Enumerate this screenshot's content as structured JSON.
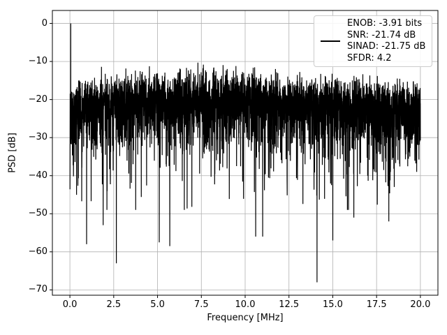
{
  "figure": {
    "background": "#ffffff",
    "xlabel": "Frequency [MHz]",
    "ylabel": "PSD [dB]"
  },
  "legend": {
    "lines": [
      "ENOB: -3.91 bits",
      "SNR: -21.74 dB",
      "SINAD: -21.75 dB",
      "SFDR: 4.2"
    ],
    "line_color": "#000000"
  },
  "chart_data": {
    "type": "line",
    "title": "",
    "xlabel": "Frequency [MHz]",
    "ylabel": "PSD [dB]",
    "xlim": [
      -1,
      21
    ],
    "ylim": [
      -71.4,
      3.4
    ],
    "grid": true,
    "grid_color": "#b0b0b0",
    "frame_color": "#000000",
    "x_ticks": [
      {
        "value": 0.0,
        "label": "0.0"
      },
      {
        "value": 2.5,
        "label": "2.5"
      },
      {
        "value": 5.0,
        "label": "5.0"
      },
      {
        "value": 7.5,
        "label": "7.5"
      },
      {
        "value": 10.0,
        "label": "10.0"
      },
      {
        "value": 12.5,
        "label": "12.5"
      },
      {
        "value": 15.0,
        "label": "15.0"
      },
      {
        "value": 17.5,
        "label": "17.5"
      },
      {
        "value": 20.0,
        "label": "20.0"
      }
    ],
    "y_ticks": [
      {
        "value": 0,
        "label": "0"
      },
      {
        "value": -10,
        "label": "−10"
      },
      {
        "value": -20,
        "label": "−20"
      },
      {
        "value": -30,
        "label": "−30"
      },
      {
        "value": -40,
        "label": "−40"
      },
      {
        "value": -50,
        "label": "−50"
      },
      {
        "value": -60,
        "label": "−60"
      },
      {
        "value": -70,
        "label": "−70"
      }
    ],
    "series": [
      {
        "name": "ENOB: -3.91 bits / SNR: -21.74 dB / SINAD: -21.75 dB / SFDR: 4.2",
        "color": "#000000",
        "line_width": 1.2,
        "kind": "psd-noise-spectrum"
      }
    ],
    "stats": {
      "enob_bits": -3.91,
      "snr_db": -21.74,
      "sinad_db": -21.75,
      "sfdr": 4.2
    },
    "signal_peak": {
      "freq_mhz": 0.05,
      "psd_db": 0.0
    },
    "noise_model": {
      "bins": 4096,
      "seed": 7,
      "freq_span_mhz": 20,
      "floor_db": -21.5,
      "hump_amp_db": 2.8,
      "hump_center_mhz": 8,
      "hump_width": 45,
      "lowfreq_dip_db": 3.5,
      "lowfreq_tau_mhz": 0.6,
      "random_min_clamp_db": -49,
      "max_clamp_db": -10.3,
      "top_envelope_db": -11,
      "typical_floor_band_db": [
        -40,
        -13
      ]
    },
    "notable_dips": [
      {
        "freq_mhz": 0.95,
        "psd_db": -58
      },
      {
        "freq_mhz": 1.9,
        "psd_db": -53
      },
      {
        "freq_mhz": 2.65,
        "psd_db": -63
      },
      {
        "freq_mhz": 5.1,
        "psd_db": -57.5
      },
      {
        "freq_mhz": 5.7,
        "psd_db": -58.5
      },
      {
        "freq_mhz": 10.6,
        "psd_db": -56
      },
      {
        "freq_mhz": 11.0,
        "psd_db": -56
      },
      {
        "freq_mhz": 14.1,
        "psd_db": -68
      },
      {
        "freq_mhz": 15.0,
        "psd_db": -57
      },
      {
        "freq_mhz": 16.2,
        "psd_db": -51
      },
      {
        "freq_mhz": 18.2,
        "psd_db": -52
      }
    ]
  }
}
